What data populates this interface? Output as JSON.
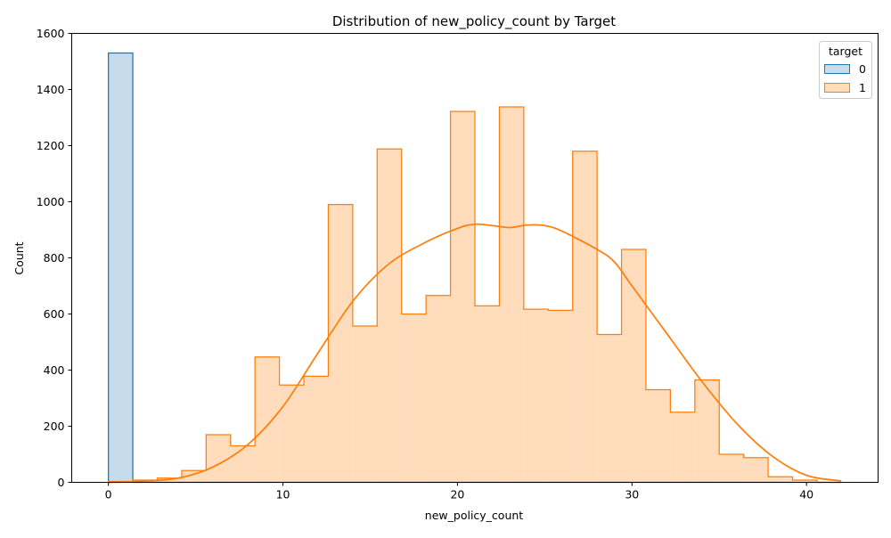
{
  "chart_data": {
    "type": "histogram",
    "title": "Distribution of new_policy_count by Target",
    "xlabel": "new_policy_count",
    "ylabel": "Count",
    "xlim": [
      -2.1,
      44.1
    ],
    "ylim": [
      0,
      1600
    ],
    "xticks": [
      "0",
      "10",
      "20",
      "30",
      "40"
    ],
    "xtick_values": [
      0,
      10,
      20,
      30,
      40
    ],
    "yticks": [
      "0",
      "200",
      "400",
      "600",
      "800",
      "1000",
      "1200",
      "1400",
      "1600"
    ],
    "ytick_values": [
      0,
      200,
      400,
      600,
      800,
      1000,
      1200,
      1400,
      1600
    ],
    "bin_edges": [
      0,
      1.4,
      2.8,
      4.2,
      5.6,
      7.0,
      8.4,
      9.8,
      11.2,
      12.6,
      14.0,
      15.4,
      16.8,
      18.2,
      19.6,
      21.0,
      22.4,
      23.8,
      25.2,
      26.6,
      28.0,
      29.4,
      30.8,
      32.2,
      33.6,
      35.0,
      36.4,
      37.8,
      39.2,
      40.6,
      42.0
    ],
    "legend": {
      "title": "target",
      "position": "top-right"
    },
    "series": [
      {
        "name": "0",
        "color": "#1f77b4",
        "fill": "#c6dcec",
        "values": [
          1530,
          0,
          0,
          0,
          0,
          0,
          0,
          0,
          0,
          0,
          0,
          0,
          0,
          0,
          0,
          0,
          0,
          0,
          0,
          0,
          0,
          0,
          0,
          0,
          0,
          0,
          0,
          0,
          0,
          0
        ]
      },
      {
        "name": "1",
        "color": "#ff7f0e",
        "fill": "#ffdcbc",
        "values": [
          3,
          8,
          15,
          42,
          170,
          130,
          447,
          347,
          378,
          990,
          557,
          1188,
          600,
          666,
          1322,
          629,
          1338,
          617,
          613,
          1180,
          527,
          830,
          330,
          250,
          365,
          100,
          88,
          20,
          8,
          0
        ],
        "kde": {
          "x": [
            0,
            2,
            4,
            6,
            8,
            10,
            12,
            14,
            16,
            18,
            20,
            21,
            22,
            23,
            24,
            25,
            26,
            28,
            29,
            30,
            32,
            34,
            36,
            38,
            40,
            42
          ],
          "y": [
            0,
            4,
            15,
            55,
            135,
            270,
            460,
            645,
            775,
            850,
            905,
            920,
            915,
            908,
            917,
            915,
            895,
            830,
            785,
            700,
            530,
            360,
            210,
            95,
            25,
            5
          ]
        }
      }
    ]
  }
}
